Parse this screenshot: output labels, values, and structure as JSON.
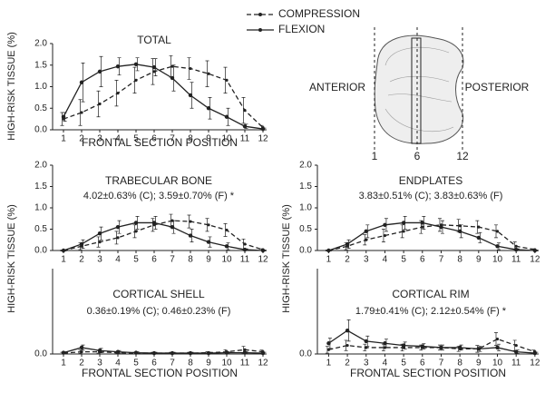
{
  "chart_data": [
    {
      "type": "line",
      "title": "TOTAL",
      "xlabel": "FRONTAL SECTION POSITION",
      "ylabel": "HIGH-RISK TISSUE (%)",
      "x": [
        1,
        2,
        3,
        4,
        5,
        6,
        7,
        8,
        9,
        10,
        11,
        12
      ],
      "xlim": [
        0.4,
        12.2
      ],
      "xticks": [
        1,
        2,
        3,
        4,
        5,
        6,
        7,
        8,
        9,
        10,
        11,
        12
      ],
      "ylim": [
        0,
        2
      ],
      "yticks": [
        {
          "value": 0,
          "label": "0.0"
        },
        0.5,
        {
          "value": 1,
          "label": "1.0"
        },
        1.5,
        {
          "value": 2,
          "label": "2.0"
        }
      ],
      "series": [
        {
          "name": "COMPRESSION",
          "color": "#222222",
          "line_style": "dashed",
          "values": [
            0.25,
            0.4,
            0.6,
            0.85,
            1.15,
            1.35,
            1.47,
            1.42,
            1.3,
            1.15,
            0.45,
            0.05
          ],
          "errors": [
            0.15,
            0.3,
            0.3,
            0.3,
            0.3,
            0.3,
            0.25,
            0.25,
            0.3,
            0.3,
            0.3,
            0.05
          ]
        },
        {
          "name": "FLEXION",
          "color": "#222222",
          "line_style": "solid",
          "values": [
            0.3,
            1.1,
            1.35,
            1.47,
            1.52,
            1.45,
            1.2,
            0.8,
            0.5,
            0.3,
            0.08,
            0.02
          ],
          "errors": [
            0.1,
            0.45,
            0.35,
            0.2,
            0.15,
            0.2,
            0.3,
            0.3,
            0.25,
            0.2,
            0.05,
            0.02
          ]
        }
      ]
    },
    {
      "type": "line",
      "title": "TRABECULAR BONE",
      "subtitle": "4.02±0.63% (C); 3.59±0.70% (F) *",
      "ylabel": "HIGH-RISK TISSUE (%)",
      "x": [
        1,
        2,
        3,
        4,
        5,
        6,
        7,
        8,
        9,
        10,
        11,
        12
      ],
      "xlim": [
        0.4,
        12.2
      ],
      "xticks": [
        1,
        2,
        3,
        4,
        5,
        6,
        7,
        8,
        9,
        10,
        11,
        12
      ],
      "ylim": [
        0,
        2
      ],
      "yticks": [
        {
          "value": 0,
          "label": "0.0"
        },
        0.5,
        {
          "value": 1,
          "label": "1.0"
        },
        1.5,
        {
          "value": 2,
          "label": "2.0"
        }
      ],
      "series": [
        {
          "color": "#222222",
          "line_style": "dashed",
          "values": [
            0,
            0.1,
            0.2,
            0.3,
            0.45,
            0.6,
            0.7,
            0.68,
            0.6,
            0.48,
            0.15,
            0.02
          ],
          "errors": [
            0.01,
            0.08,
            0.12,
            0.15,
            0.15,
            0.15,
            0.15,
            0.15,
            0.15,
            0.15,
            0.12,
            0.02
          ]
        },
        {
          "color": "#222222",
          "line_style": "solid",
          "values": [
            0,
            0.15,
            0.4,
            0.55,
            0.65,
            0.65,
            0.55,
            0.35,
            0.2,
            0.1,
            0.02,
            0
          ],
          "errors": [
            0.01,
            0.1,
            0.15,
            0.15,
            0.15,
            0.15,
            0.15,
            0.15,
            0.12,
            0.08,
            0.02,
            0.01
          ]
        }
      ]
    },
    {
      "type": "line",
      "title": "ENDPLATES",
      "subtitle": "3.83±0.51% (C); 3.83±0.63% (F)",
      "ylabel": "HIGH-RISK TISSUE (%)",
      "x": [
        1,
        2,
        3,
        4,
        5,
        6,
        7,
        8,
        9,
        10,
        11,
        12
      ],
      "xlim": [
        0.4,
        12.2
      ],
      "xticks": [
        1,
        2,
        3,
        4,
        5,
        6,
        7,
        8,
        9,
        10,
        11,
        12
      ],
      "ylim": [
        0,
        2
      ],
      "yticks": [
        {
          "value": 0,
          "label": "0.0"
        },
        0.5,
        {
          "value": 1,
          "label": "1.0"
        },
        1.5,
        {
          "value": 2,
          "label": "2.0"
        }
      ],
      "series": [
        {
          "color": "#222222",
          "line_style": "dashed",
          "values": [
            0,
            0.1,
            0.25,
            0.35,
            0.45,
            0.55,
            0.6,
            0.58,
            0.55,
            0.45,
            0.1,
            0.02
          ],
          "errors": [
            0.01,
            0.08,
            0.12,
            0.15,
            0.15,
            0.15,
            0.15,
            0.15,
            0.15,
            0.15,
            0.1,
            0.02
          ]
        },
        {
          "color": "#222222",
          "line_style": "solid",
          "values": [
            0,
            0.15,
            0.45,
            0.6,
            0.65,
            0.65,
            0.55,
            0.45,
            0.3,
            0.1,
            0.02,
            0
          ],
          "errors": [
            0.01,
            0.1,
            0.15,
            0.15,
            0.15,
            0.15,
            0.15,
            0.15,
            0.12,
            0.08,
            0.02,
            0.01
          ]
        }
      ]
    },
    {
      "type": "line",
      "title": "CORTICAL SHELL",
      "subtitle": "0.36±0.19% (C); 0.46±0.23% (F)",
      "xlabel": "FRONTAL SECTION POSITION",
      "x": [
        1,
        2,
        3,
        4,
        5,
        6,
        7,
        8,
        9,
        10,
        11,
        12
      ],
      "xlim": [
        0.4,
        12.2
      ],
      "xticks": [
        1,
        2,
        3,
        4,
        5,
        6,
        7,
        8,
        9,
        10,
        11,
        12
      ],
      "ylim": [
        0,
        2
      ],
      "yticks": [
        {
          "value": 0,
          "label": "0.0"
        }
      ],
      "series": [
        {
          "color": "#222222",
          "line_style": "dashed",
          "values": [
            0.02,
            0.05,
            0.05,
            0.03,
            0.02,
            0.02,
            0.02,
            0.02,
            0.03,
            0.05,
            0.1,
            0.05
          ],
          "errors": [
            0.02,
            0.04,
            0.03,
            0.02,
            0.02,
            0.02,
            0.02,
            0.02,
            0.02,
            0.05,
            0.08,
            0.04
          ]
        },
        {
          "color": "#222222",
          "line_style": "solid",
          "values": [
            0.03,
            0.15,
            0.08,
            0.05,
            0.03,
            0.02,
            0.02,
            0.02,
            0.02,
            0.03,
            0.03,
            0.02
          ],
          "errors": [
            0.02,
            0.06,
            0.05,
            0.03,
            0.02,
            0.02,
            0.02,
            0.02,
            0.02,
            0.02,
            0.02,
            0.02
          ]
        }
      ]
    },
    {
      "type": "line",
      "title": "CORTICAL RIM",
      "subtitle": "1.79±0.41% (C); 2.12±0.54% (F) *",
      "xlabel": "FRONTAL SECTION POSITION",
      "x": [
        1,
        2,
        3,
        4,
        5,
        6,
        7,
        8,
        9,
        10,
        11,
        12
      ],
      "xlim": [
        0.4,
        12.2
      ],
      "xticks": [
        1,
        2,
        3,
        4,
        5,
        6,
        7,
        8,
        9,
        10,
        11,
        12
      ],
      "ylim": [
        0,
        2
      ],
      "yticks": [
        {
          "value": 0,
          "label": "0.0"
        }
      ],
      "series": [
        {
          "color": "#222222",
          "line_style": "dashed",
          "values": [
            0.1,
            0.2,
            0.15,
            0.15,
            0.15,
            0.15,
            0.15,
            0.12,
            0.12,
            0.35,
            0.2,
            0.05
          ],
          "errors": [
            0.08,
            0.12,
            0.08,
            0.08,
            0.08,
            0.06,
            0.06,
            0.06,
            0.08,
            0.15,
            0.12,
            0.04
          ]
        },
        {
          "color": "#222222",
          "line_style": "solid",
          "values": [
            0.25,
            0.55,
            0.3,
            0.25,
            0.2,
            0.18,
            0.15,
            0.15,
            0.12,
            0.15,
            0.05,
            0.02
          ],
          "errors": [
            0.12,
            0.25,
            0.12,
            0.1,
            0.08,
            0.06,
            0.06,
            0.06,
            0.06,
            0.08,
            0.04,
            0.02
          ]
        }
      ]
    }
  ],
  "diagram": {
    "anterior": "ANTERIOR",
    "posterior": "POSTERIOR",
    "marks": [
      "1",
      "6",
      "12"
    ]
  }
}
